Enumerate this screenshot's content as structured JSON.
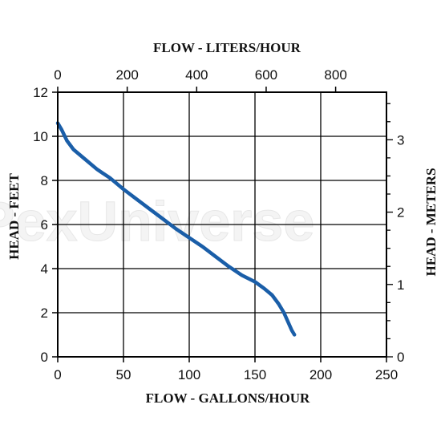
{
  "watermark": "PexUniverse",
  "chart_data": {
    "type": "line",
    "title": "",
    "xlabel": "FLOW - GALLONS/HOUR",
    "x2label": "FLOW - LITERS/HOUR",
    "ylabel": "HEAD - FEET",
    "y2label": "HEAD - METERS",
    "xlim": [
      0,
      250
    ],
    "ylim": [
      0,
      12
    ],
    "x2lim": [
      0,
      946.35
    ],
    "y2lim": [
      0,
      3.6576
    ],
    "x_ticks": [
      0,
      50,
      100,
      150,
      200,
      250
    ],
    "y_ticks": [
      0,
      2,
      4,
      6,
      8,
      10,
      12
    ],
    "x2_ticks": [
      0,
      200,
      400,
      600,
      800
    ],
    "y2_ticks": [
      0,
      1,
      2,
      3
    ],
    "grid": true,
    "line_color": "#1a5ea8",
    "series": [
      {
        "x": [
          0,
          3,
          7,
          12,
          20,
          30,
          40,
          50,
          60,
          70,
          80,
          90,
          100,
          110,
          120,
          130,
          140,
          150,
          157,
          163,
          168,
          172,
          175,
          178,
          180
        ],
        "y": [
          10.6,
          10.3,
          9.8,
          9.4,
          9.0,
          8.5,
          8.1,
          7.6,
          7.15,
          6.7,
          6.25,
          5.8,
          5.4,
          5.0,
          4.55,
          4.1,
          3.7,
          3.4,
          3.1,
          2.8,
          2.4,
          2.0,
          1.6,
          1.2,
          1.0
        ]
      }
    ]
  }
}
